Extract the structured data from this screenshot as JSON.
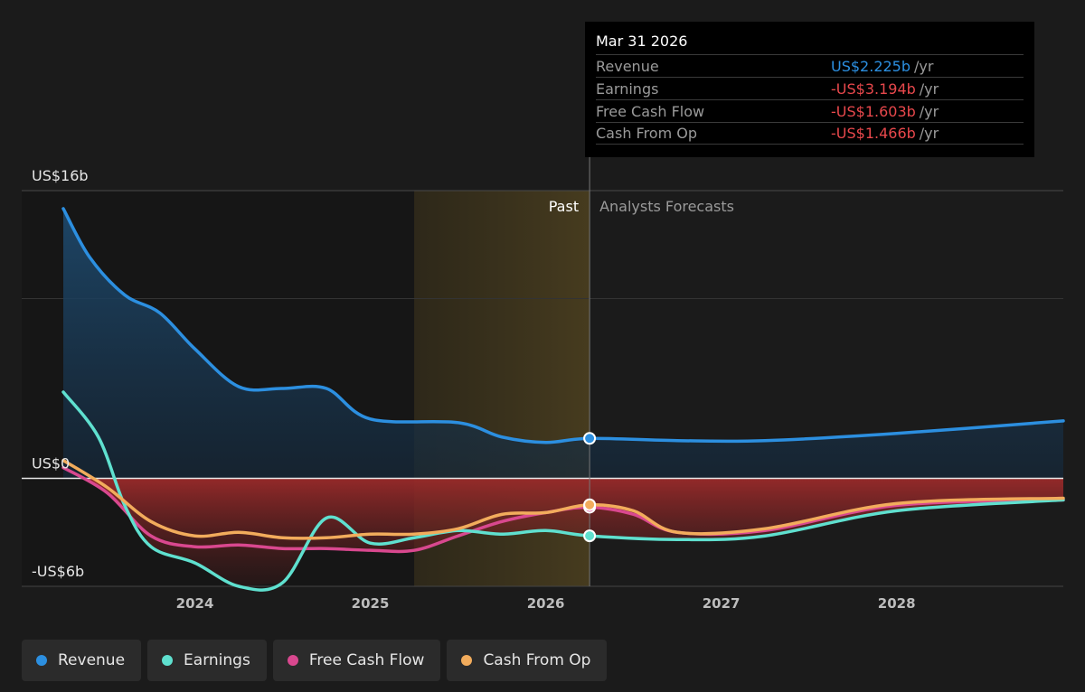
{
  "chart_data": {
    "type": "area",
    "y_axis": {
      "tick_labels": [
        "US$16b",
        "US$0",
        "-US$6b"
      ],
      "tick_values": [
        16,
        0,
        -6
      ],
      "range": [
        -6,
        16
      ],
      "unit": "billion USD",
      "gridlines": [
        16,
        10,
        0,
        -6
      ]
    },
    "x_axis": {
      "tick_labels": [
        "2024",
        "2025",
        "2026",
        "2027",
        "2028"
      ],
      "tick_values": [
        2024,
        2025,
        2026,
        2027,
        2028
      ],
      "range": [
        2023.15,
        2028.95
      ]
    },
    "regions": {
      "past_label": "Past",
      "forecast_label": "Analysts Forecasts",
      "highlight_start": 2025.25,
      "divider": 2026.25
    },
    "series": [
      {
        "name": "Revenue",
        "color": "#2c8fe0",
        "points": [
          [
            2023.25,
            15
          ],
          [
            2023.4,
            12.3
          ],
          [
            2023.6,
            10.2
          ],
          [
            2023.8,
            9.2
          ],
          [
            2024.0,
            7.2
          ],
          [
            2024.25,
            5.1
          ],
          [
            2024.5,
            5.0
          ],
          [
            2024.75,
            5.0
          ],
          [
            2025.0,
            3.3
          ],
          [
            2025.5,
            3.1
          ],
          [
            2025.75,
            2.3
          ],
          [
            2026.0,
            2.0
          ],
          [
            2026.25,
            2.225
          ],
          [
            2026.75,
            2.1
          ],
          [
            2027.25,
            2.1
          ],
          [
            2028.0,
            2.5
          ],
          [
            2028.95,
            3.2
          ]
        ]
      },
      {
        "name": "Earnings",
        "color": "#5fe0cf",
        "points": [
          [
            2023.25,
            4.8
          ],
          [
            2023.45,
            2.3
          ],
          [
            2023.6,
            -1.5
          ],
          [
            2023.75,
            -3.8
          ],
          [
            2024.0,
            -4.7
          ],
          [
            2024.25,
            -6.0
          ],
          [
            2024.5,
            -5.8
          ],
          [
            2024.75,
            -2.2
          ],
          [
            2025.0,
            -3.6
          ],
          [
            2025.25,
            -3.3
          ],
          [
            2025.5,
            -2.9
          ],
          [
            2025.75,
            -3.1
          ],
          [
            2026.0,
            -2.9
          ],
          [
            2026.25,
            -3.194
          ],
          [
            2026.75,
            -3.4
          ],
          [
            2027.25,
            -3.2
          ],
          [
            2028.0,
            -1.8
          ],
          [
            2028.95,
            -1.2
          ]
        ]
      },
      {
        "name": "Free Cash Flow",
        "color": "#d9488f",
        "points": [
          [
            2023.25,
            0.6
          ],
          [
            2023.5,
            -0.8
          ],
          [
            2023.75,
            -3.2
          ],
          [
            2024.0,
            -3.8
          ],
          [
            2024.25,
            -3.7
          ],
          [
            2024.5,
            -3.9
          ],
          [
            2024.75,
            -3.9
          ],
          [
            2025.0,
            -4.0
          ],
          [
            2025.25,
            -4.0
          ],
          [
            2025.5,
            -3.2
          ],
          [
            2025.75,
            -2.4
          ],
          [
            2026.0,
            -1.9
          ],
          [
            2026.25,
            -1.603
          ],
          [
            2026.5,
            -2.0
          ],
          [
            2026.75,
            -3.0
          ],
          [
            2027.25,
            -2.9
          ],
          [
            2028.0,
            -1.5
          ],
          [
            2028.95,
            -1.2
          ]
        ]
      },
      {
        "name": "Cash From Op",
        "color": "#f2ac5c",
        "points": [
          [
            2023.25,
            1.0
          ],
          [
            2023.5,
            -0.5
          ],
          [
            2023.75,
            -2.4
          ],
          [
            2024.0,
            -3.2
          ],
          [
            2024.25,
            -3.0
          ],
          [
            2024.5,
            -3.3
          ],
          [
            2024.75,
            -3.3
          ],
          [
            2025.0,
            -3.1
          ],
          [
            2025.25,
            -3.1
          ],
          [
            2025.5,
            -2.8
          ],
          [
            2025.75,
            -2.0
          ],
          [
            2026.0,
            -1.9
          ],
          [
            2026.25,
            -1.466
          ],
          [
            2026.5,
            -1.8
          ],
          [
            2026.75,
            -3.0
          ],
          [
            2027.25,
            -2.8
          ],
          [
            2028.0,
            -1.4
          ],
          [
            2028.95,
            -1.1
          ]
        ]
      }
    ]
  },
  "tooltip": {
    "date": "Mar 31 2026",
    "rows": [
      {
        "label": "Revenue",
        "value": "US$2.225b",
        "unit": "/yr",
        "color": "#2c8fe0"
      },
      {
        "label": "Earnings",
        "value": "-US$3.194b",
        "unit": "/yr",
        "color": "#e8484c"
      },
      {
        "label": "Free Cash Flow",
        "value": "-US$1.603b",
        "unit": "/yr",
        "color": "#e8484c"
      },
      {
        "label": "Cash From Op",
        "value": "-US$1.466b",
        "unit": "/yr",
        "color": "#e8484c"
      }
    ]
  },
  "legend": [
    {
      "label": "Revenue",
      "color": "#2c8fe0"
    },
    {
      "label": "Earnings",
      "color": "#5fe0cf"
    },
    {
      "label": "Free Cash Flow",
      "color": "#d9488f"
    },
    {
      "label": "Cash From Op",
      "color": "#f2ac5c"
    }
  ]
}
